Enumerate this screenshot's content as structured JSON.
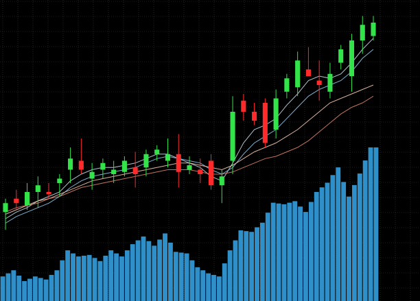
{
  "chart_data": {
    "type": "candlestick",
    "title": "",
    "xlabel": "",
    "ylabel": "",
    "grid": true,
    "grid_style": "dotted",
    "price_range": [
      0,
      100
    ],
    "volume_range": [
      0,
      100
    ],
    "colors": {
      "background": "#000000",
      "grid": "#3a3a3a",
      "up": "#33e34a",
      "down": "#ff2a2a",
      "volume": "#2f8fc9",
      "ma_fast": "#c5d6e6",
      "ma_mid": "#8ec5e8",
      "ma_slow": "#f3c6b0",
      "ma_slowest": "#d7816a"
    },
    "candles": [
      {
        "o": 11,
        "h": 17,
        "l": 3,
        "c": 15
      },
      {
        "o": 17,
        "h": 21,
        "l": 12,
        "c": 15
      },
      {
        "o": 14,
        "h": 24,
        "l": 12,
        "c": 20
      },
      {
        "o": 20,
        "h": 27,
        "l": 13,
        "c": 23
      },
      {
        "o": 20,
        "h": 24,
        "l": 17,
        "c": 19
      },
      {
        "o": 24,
        "h": 28,
        "l": 18,
        "c": 26
      },
      {
        "o": 30,
        "h": 40,
        "l": 24,
        "c": 35
      },
      {
        "o": 34,
        "h": 44,
        "l": 28,
        "c": 30
      },
      {
        "o": 26,
        "h": 33,
        "l": 21,
        "c": 29
      },
      {
        "o": 30,
        "h": 35,
        "l": 26,
        "c": 33
      },
      {
        "o": 28,
        "h": 34,
        "l": 24,
        "c": 30
      },
      {
        "o": 29,
        "h": 36,
        "l": 27,
        "c": 34
      },
      {
        "o": 31,
        "h": 38,
        "l": 22,
        "c": 28
      },
      {
        "o": 31,
        "h": 39,
        "l": 27,
        "c": 37
      },
      {
        "o": 37,
        "h": 41,
        "l": 34,
        "c": 39
      },
      {
        "o": 34,
        "h": 44,
        "l": 31,
        "c": 37
      },
      {
        "o": 37,
        "h": 46,
        "l": 22,
        "c": 29
      },
      {
        "o": 30,
        "h": 36,
        "l": 28,
        "c": 32
      },
      {
        "o": 30,
        "h": 35,
        "l": 24,
        "c": 28
      },
      {
        "o": 34,
        "h": 37,
        "l": 21,
        "c": 23
      },
      {
        "o": 23,
        "h": 30,
        "l": 15,
        "c": 27
      },
      {
        "o": 34,
        "h": 63,
        "l": 28,
        "c": 56
      },
      {
        "o": 61,
        "h": 64,
        "l": 52,
        "c": 56
      },
      {
        "o": 56,
        "h": 60,
        "l": 50,
        "c": 52
      },
      {
        "o": 60,
        "h": 62,
        "l": 40,
        "c": 42
      },
      {
        "o": 48,
        "h": 66,
        "l": 44,
        "c": 62
      },
      {
        "o": 65,
        "h": 73,
        "l": 62,
        "c": 71
      },
      {
        "o": 67,
        "h": 83,
        "l": 63,
        "c": 79
      },
      {
        "o": 75,
        "h": 85,
        "l": 72,
        "c": 72
      },
      {
        "o": 70,
        "h": 79,
        "l": 61,
        "c": 68
      },
      {
        "o": 65,
        "h": 78,
        "l": 62,
        "c": 73
      },
      {
        "o": 78,
        "h": 86,
        "l": 75,
        "c": 84
      },
      {
        "o": 72,
        "h": 91,
        "l": 65,
        "c": 88
      },
      {
        "o": 88,
        "h": 99,
        "l": 82,
        "c": 95
      },
      {
        "o": 90,
        "h": 99,
        "l": 88,
        "c": 96
      }
    ],
    "volume": [
      16,
      20,
      13,
      16,
      14,
      20,
      33,
      29,
      30,
      26,
      33,
      29,
      37,
      42,
      36,
      44,
      32,
      31,
      22,
      18,
      16,
      33,
      46,
      45,
      51,
      64,
      63,
      65,
      58,
      71,
      77,
      87,
      68,
      83,
      100
    ],
    "moving_averages": [
      {
        "color_key": "ma_fast",
        "values": [
          8,
          11,
          13,
          16,
          18,
          20,
          25,
          28,
          30,
          31,
          31,
          32,
          33,
          35,
          37,
          37,
          35,
          33,
          31,
          27,
          25,
          33,
          42,
          48,
          50,
          53,
          59,
          64,
          70,
          72,
          71,
          73,
          78,
          84,
          89
        ]
      },
      {
        "color_key": "ma_mid",
        "values": [
          6,
          9,
          11,
          13,
          15,
          18,
          22,
          25,
          27,
          28,
          29,
          30,
          31,
          33,
          35,
          36,
          35,
          34,
          33,
          30,
          28,
          31,
          37,
          42,
          45,
          48,
          53,
          58,
          63,
          66,
          68,
          70,
          74,
          80,
          84
        ]
      },
      {
        "color_key": "ma_slow",
        "values": [
          10,
          12,
          14,
          16,
          17,
          19,
          21,
          23,
          25,
          26,
          27,
          28,
          29,
          30,
          31,
          32,
          33,
          33,
          32,
          31,
          30,
          32,
          35,
          38,
          40,
          42,
          45,
          48,
          52,
          56,
          60,
          62,
          64,
          66,
          68
        ]
      },
      {
        "color_key": "ma_slowest",
        "values": [
          11,
          13,
          14,
          15,
          17,
          18,
          20,
          22,
          23,
          24,
          25,
          26,
          27,
          28,
          29,
          30,
          30,
          30,
          29,
          28,
          28,
          29,
          31,
          33,
          35,
          36,
          38,
          40,
          43,
          47,
          51,
          55,
          58,
          60,
          63
        ]
      }
    ]
  }
}
